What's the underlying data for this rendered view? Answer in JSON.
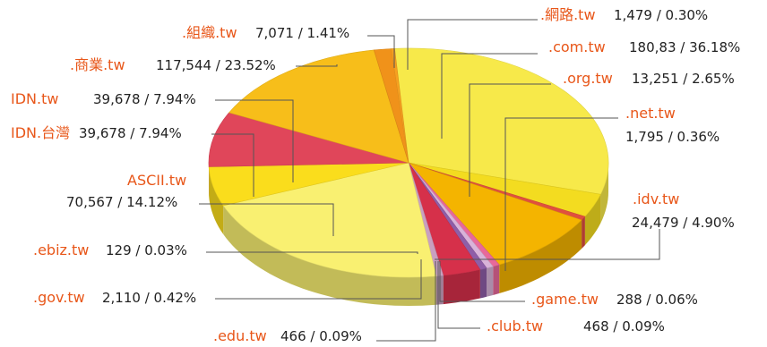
{
  "chart_data": {
    "type": "pie",
    "style": "3d",
    "colors": {
      "com": "#f7e94a",
      "org": "#f3dc20",
      "net": "#e0503e",
      "idv": "#f4b400",
      "game": "#e8699a",
      "club": "#d9b3d9",
      "edu": "#8e5ea8",
      "gov": "#d6304a",
      "ebiz": "#c9a0c0",
      "ascii": "#f9f071",
      "idn_tw": "#fadd1c",
      "idn_taiwan": "#e0465a",
      "shang": "#f7be1a",
      "zuzhi": "#f0921a",
      "wanglu": "#f7a020",
      "label": "#e8571a",
      "leader": "#555555"
    },
    "slices": [
      {
        "key": "com",
        "name": ".com.tw",
        "value_label": "180,83 / 36.18%",
        "share": 36.18
      },
      {
        "key": "org",
        "name": ".org.tw",
        "value_label": "13,251 / 2.65%",
        "share": 2.65
      },
      {
        "key": "net",
        "name": ".net.tw",
        "value_label": "1,795 / 0.36%",
        "share": 0.36
      },
      {
        "key": "idv",
        "name": ".idv.tw",
        "value_label": "24,479 / 4.90%",
        "share": 4.9
      },
      {
        "key": "game",
        "name": ".game.tw",
        "value_label": "288 / 0.06%",
        "share": 0.06
      },
      {
        "key": "club",
        "name": ".club.tw",
        "value_label": "468 / 0.09%",
        "share": 0.09
      },
      {
        "key": "edu",
        "name": ".edu.tw",
        "value_label": "466 / 0.09%",
        "share": 0.09
      },
      {
        "key": "gov",
        "name": ".gov.tw",
        "value_label": "2,110 / 0.42%",
        "share": 0.42
      },
      {
        "key": "ebiz",
        "name": ".ebiz.tw",
        "value_label": "129 / 0.03%",
        "share": 0.03
      },
      {
        "key": "ascii",
        "name": "ASCII.tw",
        "value_label": "70,567 / 14.12%",
        "share": 14.12
      },
      {
        "key": "idn_tw",
        "name": "IDN.tw",
        "value_label": "39,678 / 7.94%",
        "share": 7.94
      },
      {
        "key": "idn_taiwan",
        "name": "IDN.台灣",
        "value_label": "39,678 / 7.94%",
        "share": 7.94
      },
      {
        "key": "shang",
        "name": ".商業.tw",
        "value_label": "117,544 / 23.52%",
        "share": 23.52
      },
      {
        "key": "zuzhi",
        "name": ".組織.tw",
        "value_label": "7,071 / 1.41%",
        "share": 1.41
      },
      {
        "key": "wanglu",
        "name": ".網路.tw",
        "value_label": "1,479 / 0.30%",
        "share": 0.3
      }
    ]
  }
}
